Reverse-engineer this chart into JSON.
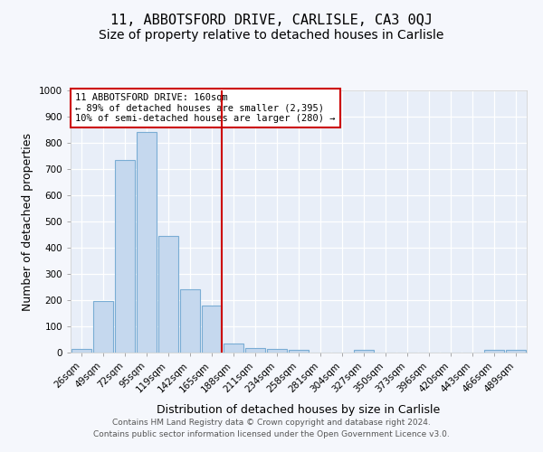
{
  "title": "11, ABBOTSFORD DRIVE, CARLISLE, CA3 0QJ",
  "subtitle": "Size of property relative to detached houses in Carlisle",
  "xlabel": "Distribution of detached houses by size in Carlisle",
  "ylabel": "Number of detached properties",
  "categories": [
    "26sqm",
    "49sqm",
    "72sqm",
    "95sqm",
    "119sqm",
    "142sqm",
    "165sqm",
    "188sqm",
    "211sqm",
    "234sqm",
    "258sqm",
    "281sqm",
    "304sqm",
    "327sqm",
    "350sqm",
    "373sqm",
    "396sqm",
    "420sqm",
    "443sqm",
    "466sqm",
    "489sqm"
  ],
  "values": [
    15,
    195,
    735,
    840,
    445,
    243,
    180,
    35,
    18,
    14,
    12,
    0,
    0,
    10,
    0,
    0,
    0,
    0,
    0,
    10,
    10
  ],
  "bar_color": "#c5d8ee",
  "bar_edge_color": "#7aadd4",
  "redline_index": 6,
  "annotation_line1": "11 ABBOTSFORD DRIVE: 160sqm",
  "annotation_line2": "← 89% of detached houses are smaller (2,395)",
  "annotation_line3": "10% of semi-detached houses are larger (280) →",
  "annotation_box_color": "#ffffff",
  "annotation_border_color": "#cc0000",
  "redline_color": "#cc0000",
  "plot_bg_color": "#e8eef8",
  "fig_bg_color": "#f5f7fc",
  "ylim": [
    0,
    1000
  ],
  "yticks": [
    0,
    100,
    200,
    300,
    400,
    500,
    600,
    700,
    800,
    900,
    1000
  ],
  "grid_color": "#ffffff",
  "title_fontsize": 11,
  "subtitle_fontsize": 10,
  "xlabel_fontsize": 9,
  "ylabel_fontsize": 9,
  "tick_fontsize": 7.5,
  "annotation_fontsize": 7.5,
  "footer_line1": "Contains HM Land Registry data © Crown copyright and database right 2024.",
  "footer_line2": "Contains public sector information licensed under the Open Government Licence v3.0."
}
